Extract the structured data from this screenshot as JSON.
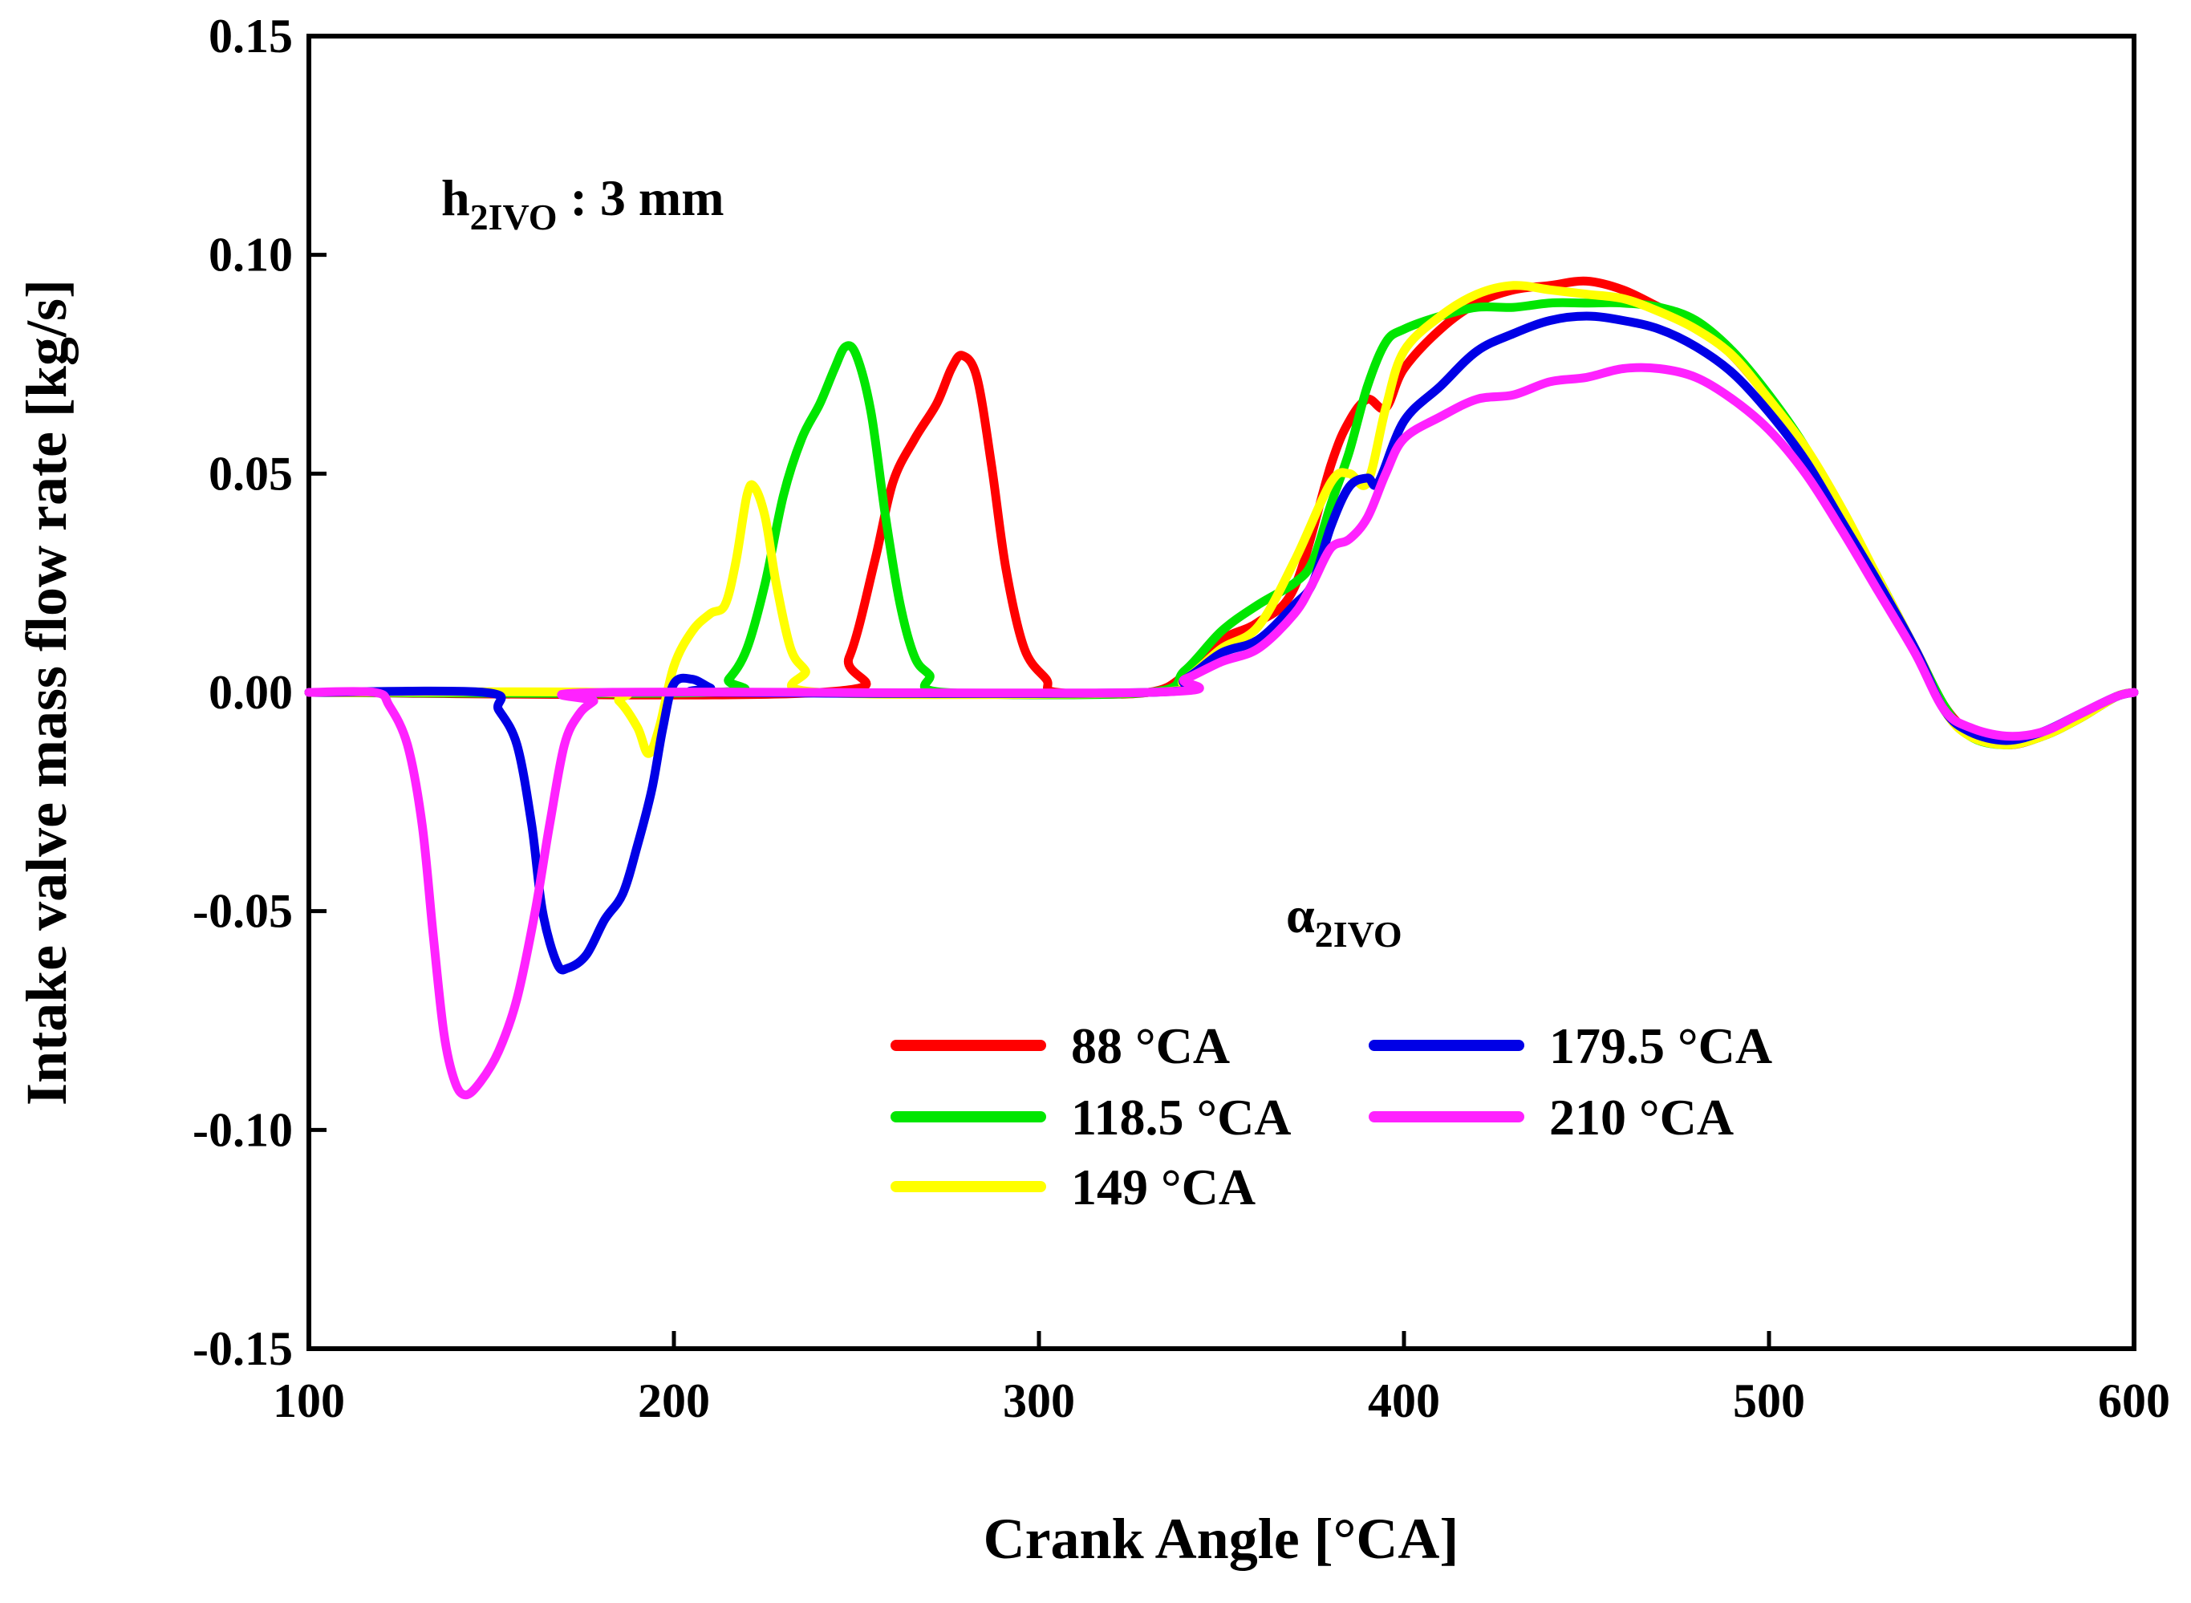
{
  "chart_data": {
    "type": "line",
    "title": "",
    "xlabel": "Crank Angle [°CA]",
    "ylabel": "Intake valve mass flow rate [kg/s]",
    "xlim": [
      100,
      600
    ],
    "ylim": [
      -0.15,
      0.15
    ],
    "x_ticks": [
      100,
      200,
      300,
      400,
      500,
      600
    ],
    "x_tick_labels": [
      "100",
      "200",
      "300",
      "400",
      "500",
      "600"
    ],
    "y_ticks": [
      0.15,
      0.1,
      0.05,
      0.0,
      -0.05,
      -0.1,
      -0.15
    ],
    "y_tick_labels": [
      "0.15",
      "0.10",
      "0.05",
      "0.00",
      "-0.05",
      "-0.10",
      "-0.15"
    ],
    "grid": false,
    "annotations": {
      "lift": {
        "base": "h",
        "sub": "2IVO",
        "rest": " : 3 mm"
      },
      "legend_title": {
        "base": "α",
        "sub": "2IVO"
      }
    },
    "legend_position": "lower-center",
    "series": [
      {
        "name": "88 °CA",
        "color": "#ff0000",
        "points": [
          [
            100,
            0
          ],
          [
            240,
            0
          ],
          [
            248,
            0.008
          ],
          [
            255,
            0.03
          ],
          [
            260,
            0.048
          ],
          [
            266,
            0.058
          ],
          [
            272,
            0.066
          ],
          [
            276,
            0.074
          ],
          [
            279,
            0.077
          ],
          [
            283,
            0.072
          ],
          [
            287,
            0.052
          ],
          [
            291,
            0.028
          ],
          [
            296,
            0.01
          ],
          [
            302,
            0.003
          ],
          [
            305,
            0
          ],
          [
            330,
            0
          ],
          [
            340,
            0.004
          ],
          [
            350,
            0.012
          ],
          [
            360,
            0.016
          ],
          [
            370,
            0.024
          ],
          [
            380,
            0.052
          ],
          [
            385,
            0.062
          ],
          [
            390,
            0.067
          ],
          [
            395,
            0.065
          ],
          [
            400,
            0.074
          ],
          [
            410,
            0.083
          ],
          [
            420,
            0.089
          ],
          [
            430,
            0.092
          ],
          [
            440,
            0.093
          ],
          [
            450,
            0.094
          ],
          [
            460,
            0.092
          ],
          [
            470,
            0.088
          ],
          [
            480,
            0.084
          ],
          [
            490,
            0.077
          ],
          [
            500,
            0.067
          ],
          [
            510,
            0.055
          ],
          [
            520,
            0.04
          ],
          [
            530,
            0.025
          ],
          [
            540,
            0.01
          ],
          [
            548,
            -0.003
          ],
          [
            555,
            -0.009
          ],
          [
            565,
            -0.012
          ],
          [
            575,
            -0.01
          ],
          [
            585,
            -0.006
          ],
          [
            595,
            -0.001
          ],
          [
            600,
            0
          ]
        ]
      },
      {
        "name": "118.5 °CA",
        "color": "#00e600",
        "points": [
          [
            100,
            0
          ],
          [
            210,
            0
          ],
          [
            215,
            0.003
          ],
          [
            220,
            0.01
          ],
          [
            225,
            0.025
          ],
          [
            230,
            0.045
          ],
          [
            235,
            0.058
          ],
          [
            240,
            0.066
          ],
          [
            244,
            0.074
          ],
          [
            247,
            0.079
          ],
          [
            250,
            0.077
          ],
          [
            254,
            0.064
          ],
          [
            258,
            0.04
          ],
          [
            262,
            0.02
          ],
          [
            266,
            0.008
          ],
          [
            270,
            0.004
          ],
          [
            274,
            0
          ],
          [
            330,
            0
          ],
          [
            340,
            0.005
          ],
          [
            350,
            0.014
          ],
          [
            360,
            0.02
          ],
          [
            370,
            0.025
          ],
          [
            375,
            0.03
          ],
          [
            380,
            0.043
          ],
          [
            385,
            0.055
          ],
          [
            390,
            0.07
          ],
          [
            395,
            0.08
          ],
          [
            400,
            0.083
          ],
          [
            410,
            0.086
          ],
          [
            420,
            0.088
          ],
          [
            430,
            0.088
          ],
          [
            440,
            0.089
          ],
          [
            450,
            0.089
          ],
          [
            460,
            0.089
          ],
          [
            470,
            0.088
          ],
          [
            480,
            0.085
          ],
          [
            490,
            0.078
          ],
          [
            500,
            0.068
          ],
          [
            510,
            0.056
          ],
          [
            520,
            0.041
          ],
          [
            530,
            0.026
          ],
          [
            540,
            0.01
          ],
          [
            548,
            -0.003
          ],
          [
            555,
            -0.01
          ],
          [
            565,
            -0.012
          ],
          [
            575,
            -0.01
          ],
          [
            585,
            -0.006
          ],
          [
            595,
            -0.001
          ],
          [
            600,
            0
          ]
        ]
      },
      {
        "name": "149 °CA",
        "color": "#ffff00",
        "points": [
          [
            100,
            0
          ],
          [
            180,
            0
          ],
          [
            185,
            -0.002
          ],
          [
            190,
            -0.008
          ],
          [
            193,
            -0.014
          ],
          [
            196,
            -0.008
          ],
          [
            200,
            0.006
          ],
          [
            205,
            0.014
          ],
          [
            210,
            0.018
          ],
          [
            214,
            0.02
          ],
          [
            217,
            0.03
          ],
          [
            220,
            0.045
          ],
          [
            222,
            0.047
          ],
          [
            225,
            0.04
          ],
          [
            228,
            0.025
          ],
          [
            232,
            0.01
          ],
          [
            236,
            0.005
          ],
          [
            240,
            0
          ],
          [
            330,
            0
          ],
          [
            340,
            0.003
          ],
          [
            350,
            0.01
          ],
          [
            360,
            0.015
          ],
          [
            370,
            0.03
          ],
          [
            380,
            0.048
          ],
          [
            385,
            0.05
          ],
          [
            390,
            0.048
          ],
          [
            395,
            0.065
          ],
          [
            400,
            0.078
          ],
          [
            410,
            0.086
          ],
          [
            420,
            0.091
          ],
          [
            430,
            0.093
          ],
          [
            440,
            0.092
          ],
          [
            450,
            0.091
          ],
          [
            460,
            0.09
          ],
          [
            470,
            0.087
          ],
          [
            480,
            0.083
          ],
          [
            490,
            0.077
          ],
          [
            500,
            0.067
          ],
          [
            510,
            0.056
          ],
          [
            520,
            0.042
          ],
          [
            530,
            0.026
          ],
          [
            540,
            0.01
          ],
          [
            548,
            -0.004
          ],
          [
            555,
            -0.01
          ],
          [
            565,
            -0.012
          ],
          [
            575,
            -0.01
          ],
          [
            585,
            -0.006
          ],
          [
            595,
            -0.001
          ],
          [
            600,
            0
          ]
        ]
      },
      {
        "name": "179.5 °CA",
        "color": "#0000e6",
        "points": [
          [
            100,
            0
          ],
          [
            148,
            0
          ],
          [
            152,
            -0.004
          ],
          [
            157,
            -0.012
          ],
          [
            161,
            -0.03
          ],
          [
            164,
            -0.05
          ],
          [
            168,
            -0.062
          ],
          [
            171,
            -0.063
          ],
          [
            176,
            -0.06
          ],
          [
            181,
            -0.052
          ],
          [
            186,
            -0.046
          ],
          [
            190,
            -0.035
          ],
          [
            194,
            -0.022
          ],
          [
            197,
            -0.008
          ],
          [
            200,
            0.002
          ],
          [
            205,
            0.003
          ],
          [
            210,
            0.001
          ],
          [
            214,
            0
          ],
          [
            330,
            0
          ],
          [
            340,
            0.003
          ],
          [
            350,
            0.009
          ],
          [
            360,
            0.012
          ],
          [
            370,
            0.02
          ],
          [
            375,
            0.025
          ],
          [
            380,
            0.038
          ],
          [
            385,
            0.047
          ],
          [
            390,
            0.049
          ],
          [
            393,
            0.048
          ],
          [
            400,
            0.062
          ],
          [
            410,
            0.07
          ],
          [
            420,
            0.078
          ],
          [
            430,
            0.082
          ],
          [
            440,
            0.085
          ],
          [
            450,
            0.086
          ],
          [
            460,
            0.085
          ],
          [
            470,
            0.083
          ],
          [
            480,
            0.079
          ],
          [
            490,
            0.073
          ],
          [
            500,
            0.064
          ],
          [
            510,
            0.053
          ],
          [
            520,
            0.039
          ],
          [
            530,
            0.025
          ],
          [
            540,
            0.01
          ],
          [
            548,
            -0.004
          ],
          [
            555,
            -0.009
          ],
          [
            565,
            -0.011
          ],
          [
            575,
            -0.009
          ],
          [
            585,
            -0.005
          ],
          [
            595,
            -0.001
          ],
          [
            600,
            0
          ]
        ]
      },
      {
        "name": "210 °CA",
        "color": "#ff22ff",
        "points": [
          [
            100,
            0
          ],
          [
            118,
            0
          ],
          [
            122,
            -0.003
          ],
          [
            127,
            -0.012
          ],
          [
            131,
            -0.03
          ],
          [
            134,
            -0.055
          ],
          [
            137,
            -0.078
          ],
          [
            140,
            -0.089
          ],
          [
            143,
            -0.092
          ],
          [
            147,
            -0.089
          ],
          [
            152,
            -0.082
          ],
          [
            157,
            -0.07
          ],
          [
            162,
            -0.05
          ],
          [
            166,
            -0.03
          ],
          [
            170,
            -0.012
          ],
          [
            174,
            -0.005
          ],
          [
            178,
            -0.002
          ],
          [
            181,
            0
          ],
          [
            330,
            0
          ],
          [
            340,
            0.003
          ],
          [
            350,
            0.007
          ],
          [
            360,
            0.01
          ],
          [
            370,
            0.018
          ],
          [
            375,
            0.025
          ],
          [
            380,
            0.033
          ],
          [
            385,
            0.035
          ],
          [
            390,
            0.04
          ],
          [
            395,
            0.05
          ],
          [
            400,
            0.058
          ],
          [
            410,
            0.063
          ],
          [
            420,
            0.067
          ],
          [
            430,
            0.068
          ],
          [
            440,
            0.071
          ],
          [
            450,
            0.072
          ],
          [
            460,
            0.074
          ],
          [
            470,
            0.074
          ],
          [
            480,
            0.072
          ],
          [
            490,
            0.067
          ],
          [
            500,
            0.06
          ],
          [
            510,
            0.05
          ],
          [
            520,
            0.037
          ],
          [
            530,
            0.023
          ],
          [
            540,
            0.009
          ],
          [
            548,
            -0.004
          ],
          [
            555,
            -0.008
          ],
          [
            565,
            -0.01
          ],
          [
            575,
            -0.009
          ],
          [
            585,
            -0.005
          ],
          [
            595,
            -0.001
          ],
          [
            600,
            0
          ]
        ]
      }
    ]
  }
}
